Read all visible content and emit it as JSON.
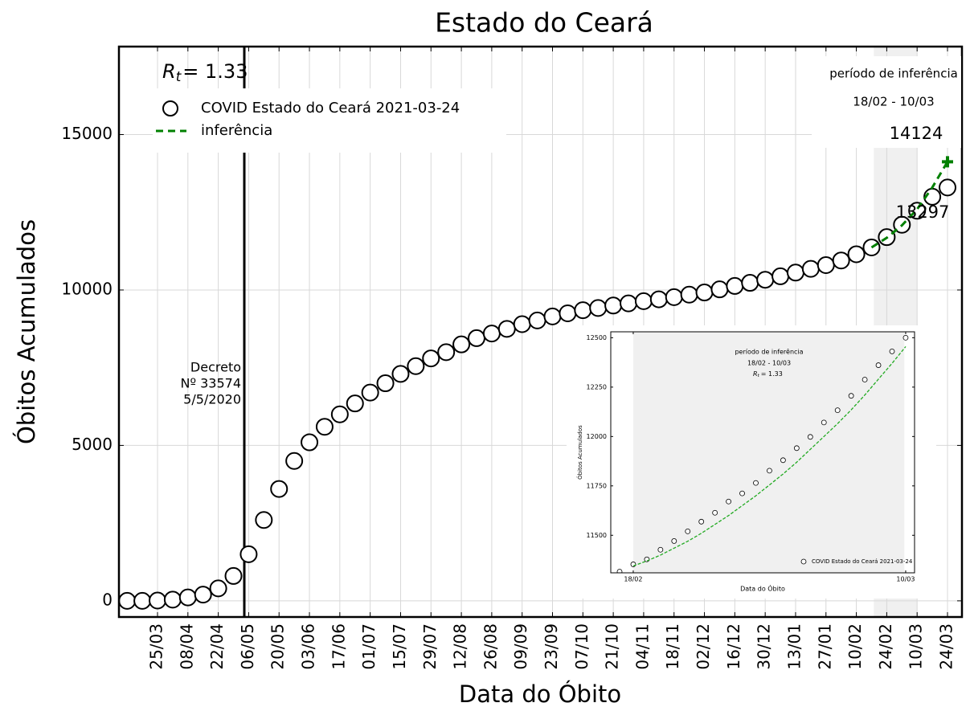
{
  "chart_data": [
    {
      "type": "scatter",
      "title": "Estado do Ceará",
      "xlabel": "Data do Óbito",
      "ylabel": "Óbitos Acumulados",
      "x": [
        null,
        null,
        "25/03",
        null,
        "08/04",
        null,
        "22/04",
        null,
        "06/05",
        null,
        "20/05",
        null,
        "03/06",
        null,
        "17/06",
        null,
        "01/07",
        null,
        "15/07",
        null,
        "29/07",
        null,
        "12/08",
        null,
        "26/08",
        null,
        "09/09",
        null,
        "23/09",
        null,
        "07/10",
        null,
        "21/10",
        null,
        "04/11",
        null,
        "18/11",
        null,
        "02/12",
        null,
        "16/12",
        null,
        "30/12",
        null,
        "13/01",
        null,
        "27/01",
        null,
        "10/02",
        null,
        "24/02",
        null,
        "10/03",
        null,
        "24/03"
      ],
      "series": [
        {
          "name": "COVID Estado do Ceará 2021-03-24",
          "color": "#000000",
          "marker": "circle",
          "values": [
            0,
            0,
            10,
            40,
            110,
            200,
            400,
            800,
            1500,
            2600,
            3600,
            4500,
            5100,
            5600,
            6000,
            6350,
            6700,
            7000,
            7300,
            7550,
            7800,
            8000,
            8250,
            8450,
            8600,
            8750,
            8900,
            9020,
            9150,
            9250,
            9350,
            9420,
            9500,
            9570,
            9640,
            9700,
            9770,
            9850,
            9920,
            10020,
            10130,
            10230,
            10330,
            10440,
            10560,
            10680,
            10800,
            10950,
            11150,
            11370,
            11700,
            12100,
            12550,
            13000,
            13297
          ]
        },
        {
          "name": "inferência",
          "color": "#008000",
          "marker": "dashed",
          "values": [
            null,
            null,
            null,
            null,
            null,
            null,
            null,
            null,
            null,
            null,
            null,
            null,
            null,
            null,
            null,
            null,
            null,
            null,
            null,
            null,
            null,
            null,
            null,
            null,
            null,
            null,
            null,
            null,
            null,
            null,
            null,
            null,
            null,
            null,
            null,
            null,
            null,
            null,
            null,
            null,
            null,
            null,
            null,
            null,
            null,
            null,
            null,
            null,
            null,
            11370,
            11680,
            12080,
            12600,
            13300,
            14124
          ]
        }
      ],
      "ylim": [
        -520,
        17830
      ],
      "yticks": [
        0,
        5000,
        10000,
        15000
      ],
      "grid": true,
      "legend": "upper left",
      "rt": {
        "symbol": "R",
        "subscript": "t",
        "text": "= 1.33"
      },
      "annotations": [
        "período de inferência",
        "18/02 - 10/03",
        "14124",
        "13297",
        "Decreto",
        "Nº 33574",
        "5/5/2020"
      ]
    },
    {
      "type": "scatter",
      "xlabel": "Data do Óbito",
      "ylabel": "Óbitos Acumulados",
      "x": [
        null,
        "18/02",
        null,
        null,
        null,
        null,
        null,
        null,
        null,
        null,
        null,
        null,
        null,
        null,
        null,
        null,
        null,
        null,
        null,
        null,
        null,
        "10/03"
      ],
      "series": [
        {
          "name": "COVID Estado do Ceará 2021-03-24",
          "color": "#000000",
          "marker": "circle",
          "values": [
            11316,
            11353,
            11378,
            11427,
            11471,
            11520,
            11569,
            11614,
            11671,
            11712,
            11765,
            11827,
            11880,
            11941,
            11998,
            12071,
            12133,
            12206,
            12288,
            12361,
            12431,
            12500
          ]
        },
        {
          "color": "#22aa22",
          "marker": "dashed",
          "values": [
            null,
            11345,
            11370,
            11400,
            11435,
            11470,
            11510,
            11555,
            11600,
            11650,
            11700,
            11755,
            11810,
            11870,
            11935,
            12000,
            12065,
            12135,
            12210,
            12290,
            12370,
            12455
          ]
        }
      ],
      "ylim": [
        11310,
        12530
      ],
      "yticks": [
        11500,
        11750,
        12000,
        12250,
        12500
      ],
      "rt": {
        "symbol": "R",
        "subscript": "t",
        "text": "= 1.33"
      },
      "annotations": [
        "período de inferência",
        "18/02 - 10/03"
      ]
    }
  ]
}
